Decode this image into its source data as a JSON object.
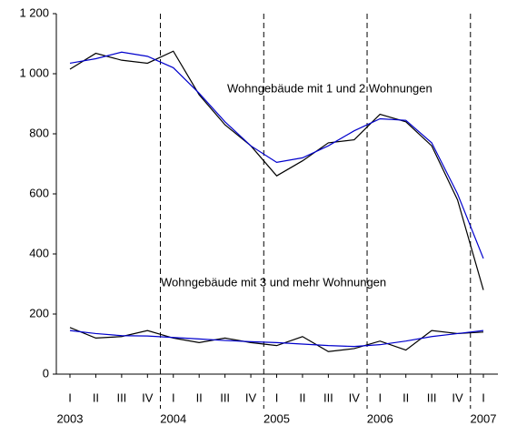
{
  "chart_data": {
    "type": "line",
    "categories": [
      "I",
      "II",
      "III",
      "IV",
      "I",
      "II",
      "III",
      "IV",
      "I",
      "II",
      "III",
      "IV",
      "I",
      "II",
      "III",
      "IV",
      "I"
    ],
    "years": [
      "2003",
      null,
      null,
      null,
      "2004",
      null,
      null,
      null,
      "2005",
      null,
      null,
      null,
      "2006",
      null,
      null,
      null,
      "2007"
    ],
    "series": [
      {
        "color": "#000000",
        "values": [
          1015,
          1068,
          1045,
          1035,
          1075,
          930,
          830,
          760,
          660,
          710,
          770,
          780,
          865,
          840,
          760,
          580,
          280
        ]
      },
      {
        "color": "#0000cc",
        "values": [
          1035,
          1050,
          1072,
          1058,
          1020,
          935,
          840,
          760,
          705,
          720,
          760,
          810,
          850,
          845,
          770,
          600,
          385
        ]
      },
      {
        "color": "#000000",
        "values": [
          155,
          120,
          125,
          145,
          120,
          105,
          120,
          105,
          95,
          125,
          75,
          85,
          110,
          80,
          145,
          135,
          140
        ]
      },
      {
        "color": "#0000cc",
        "values": [
          145,
          135,
          128,
          127,
          122,
          117,
          112,
          108,
          105,
          100,
          95,
          92,
          98,
          110,
          125,
          135,
          145
        ]
      }
    ],
    "annotations": [
      "Wohngebäude mit 1 und 2 Wohnungen",
      "Wohngebäude mit 3 und mehr Wohnungen"
    ],
    "ylim": [
      0,
      1200
    ],
    "yticks": [
      0,
      200,
      400,
      600,
      800,
      {
        "value": 1000,
        "label": "1 000"
      },
      {
        "value": 1200,
        "label": "1 200"
      }
    ],
    "year_separators": true
  }
}
